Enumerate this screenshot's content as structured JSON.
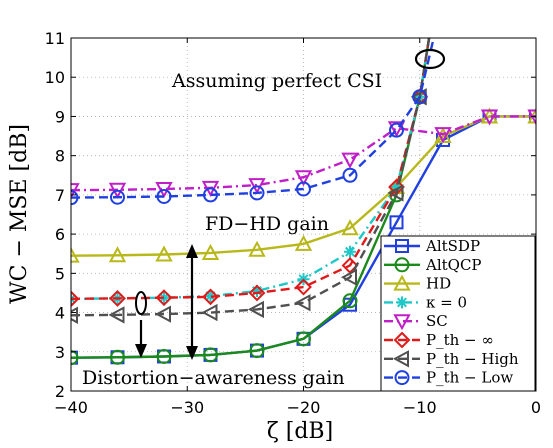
{
  "chart_data": {
    "type": "line",
    "xlabel": "ζ  [dB]",
    "ylabel": "WC − MSE  [dB]",
    "xlim": [
      -40,
      0
    ],
    "ylim": [
      2,
      11
    ],
    "xticks": [
      -40,
      -30,
      -20,
      -10,
      0
    ],
    "yticks": [
      2,
      3,
      4,
      5,
      6,
      7,
      8,
      9,
      10,
      11
    ],
    "xtick_labels": [
      "−40",
      "−30",
      "−20",
      "−10",
      "0"
    ],
    "ytick_labels": [
      "2",
      "3",
      "4",
      "5",
      "6",
      "7",
      "8",
      "9",
      "10",
      "11"
    ],
    "grid": true,
    "legend_position": "bottom-right",
    "series": [
      {
        "name": "AltSDP",
        "color": "#1f3fe0",
        "dash": "solid",
        "marker": "square",
        "x": [
          -40,
          -36,
          -32,
          -28,
          -24,
          -20,
          -16,
          -12,
          -8,
          -4,
          0
        ],
        "y": [
          2.85,
          2.86,
          2.88,
          2.92,
          3.03,
          3.33,
          4.2,
          6.3,
          8.4,
          9.0,
          9.0
        ]
      },
      {
        "name": "AltQCP",
        "color": "#1a8a1a",
        "dash": "solid",
        "marker": "circle",
        "x": [
          -40,
          -36,
          -32,
          -28,
          -24,
          -20,
          -16,
          -12,
          -10,
          -9.2
        ],
        "y": [
          2.85,
          2.86,
          2.88,
          2.92,
          3.03,
          3.33,
          4.3,
          7.0,
          9.5,
          11.0
        ]
      },
      {
        "name": "HD",
        "color": "#b8b81a",
        "dash": "solid",
        "marker": "triangle-up",
        "x": [
          -40,
          -36,
          -32,
          -28,
          -24,
          -20,
          -16,
          -12,
          -8,
          -4,
          0
        ],
        "y": [
          5.45,
          5.46,
          5.48,
          5.52,
          5.6,
          5.75,
          6.15,
          7.2,
          8.5,
          9.0,
          9.0
        ]
      },
      {
        "name": "κ = 0",
        "color": "#1fc8c8",
        "dash": "dashdot",
        "marker": "star",
        "x": [
          -40,
          -36,
          -32,
          -28,
          -24,
          -20,
          -16,
          -12,
          -10,
          -9.2
        ],
        "y": [
          4.35,
          4.36,
          4.38,
          4.42,
          4.55,
          4.85,
          5.55,
          7.2,
          9.5,
          11.0
        ]
      },
      {
        "name": "SC",
        "color": "#c01ec8",
        "dash": "dashdot",
        "marker": "triangle-down",
        "x": [
          -40,
          -36,
          -32,
          -28,
          -24,
          -20,
          -16,
          -12,
          -8,
          -4,
          0
        ],
        "y": [
          7.12,
          7.13,
          7.15,
          7.18,
          7.25,
          7.45,
          7.9,
          8.7,
          8.55,
          9.0,
          9.0
        ]
      },
      {
        "name": "P_th − ∞",
        "color": "#e01a1a",
        "dash": "dashed",
        "marker": "diamond",
        "x": [
          -40,
          -36,
          -32,
          -28,
          -24,
          -20,
          -16,
          -12,
          -10,
          -9.2
        ],
        "y": [
          4.35,
          4.36,
          4.38,
          4.4,
          4.5,
          4.65,
          5.2,
          7.2,
          9.5,
          11.0
        ]
      },
      {
        "name": "P_th − High",
        "color": "#505050",
        "dash": "dashed",
        "marker": "triangle-left",
        "x": [
          -40,
          -36,
          -32,
          -28,
          -24,
          -20,
          -16,
          -12,
          -10,
          -9.2
        ],
        "y": [
          3.93,
          3.94,
          3.96,
          4.0,
          4.08,
          4.25,
          4.9,
          7.05,
          9.5,
          11.0
        ]
      },
      {
        "name": "P_th − Low",
        "color": "#1f3fe0",
        "dash": "dashed",
        "marker": "circle",
        "x": [
          -40,
          -36,
          -32,
          -28,
          -24,
          -20,
          -16,
          -12,
          -10,
          -8.8
        ],
        "y": [
          6.93,
          6.94,
          6.96,
          7.0,
          7.05,
          7.15,
          7.5,
          8.65,
          9.5,
          11.0
        ]
      }
    ],
    "annotations": {
      "perfect_csi": "Assuming perfect CSI",
      "fd_hd_gain": "FD−HD gain",
      "distortion_gain": "Distortion−awareness gain"
    }
  }
}
